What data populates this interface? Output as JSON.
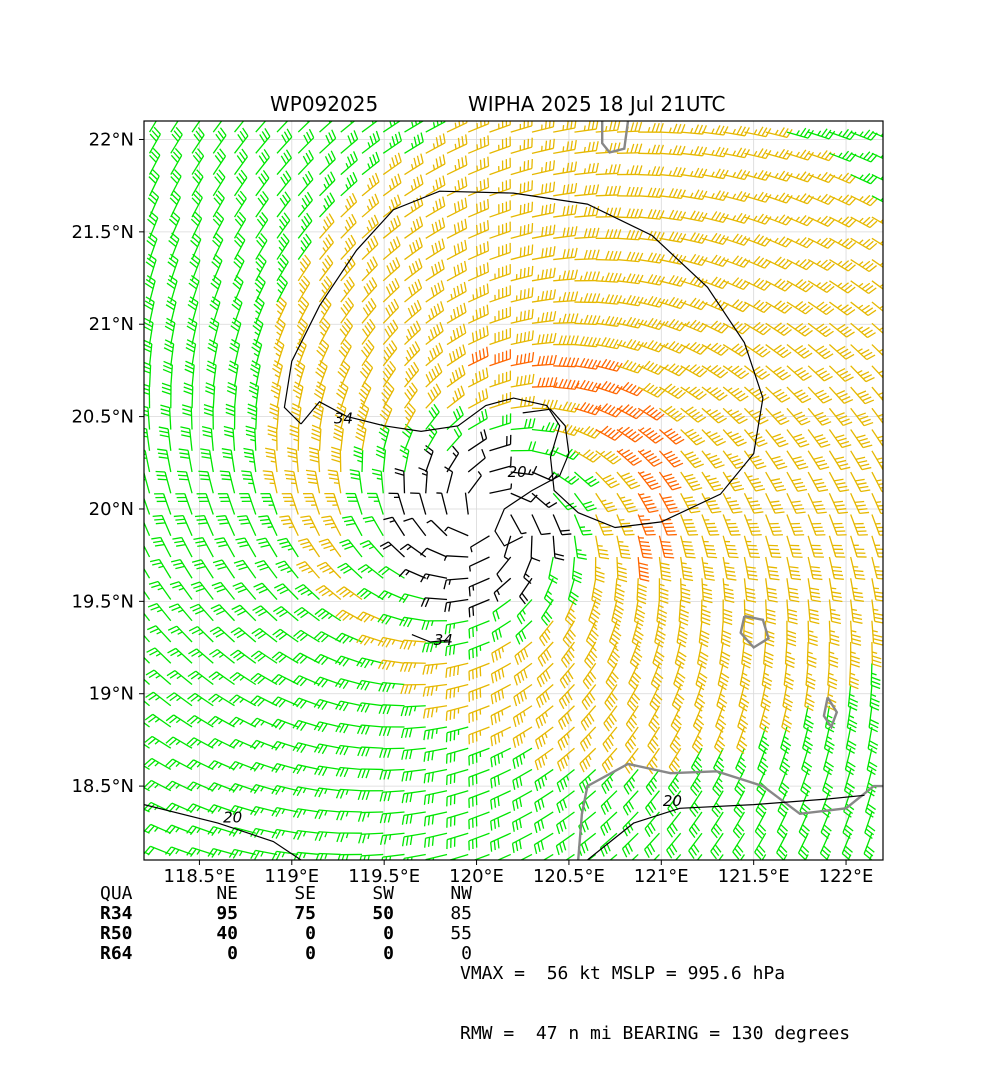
{
  "chart_data": {
    "type": "wind_barb_map",
    "title_left": "WP092025",
    "title_right": "WIPHA 2025 18 Jul 21UTC",
    "xlim": [
      118.2,
      122.2
    ],
    "ylim": [
      18.1,
      22.1
    ],
    "xticks": [
      118.5,
      119.0,
      119.5,
      120.0,
      120.5,
      121.0,
      121.5,
      122.0
    ],
    "xtick_labels": [
      "118.5°E",
      "119°E",
      "119.5°E",
      "120°E",
      "120.5°E",
      "121°E",
      "121.5°E",
      "122°E"
    ],
    "yticks": [
      18.5,
      19.0,
      19.5,
      20.0,
      20.5,
      21.0,
      21.5,
      22.0
    ],
    "ytick_labels": [
      "18.5°N",
      "19°N",
      "19.5°N",
      "20°N",
      "20.5°N",
      "21°N",
      "21.5°N",
      "22°N"
    ],
    "grid": true,
    "storm_center": {
      "lon": 120.05,
      "lat": 19.95
    },
    "wind_colors": {
      "below_20": "#000000",
      "20_to_34": "#00e600",
      "34_to_50": "#e6b800",
      "50_to_64": "#ff6600"
    },
    "contours": [
      {
        "label": "34",
        "level": 34
      },
      {
        "label": "20",
        "level": 20
      }
    ],
    "contour_label_positions": [
      {
        "text": "34",
        "lon": 119.28,
        "lat": 20.49
      },
      {
        "text": "34",
        "lon": 119.82,
        "lat": 19.29
      },
      {
        "text": "20",
        "lon": 120.22,
        "lat": 20.2
      },
      {
        "text": "20",
        "lon": 118.68,
        "lat": 18.33
      },
      {
        "text": "20",
        "lon": 121.06,
        "lat": 18.42
      }
    ],
    "wind_radii": {
      "headers": [
        "QUA",
        "NE",
        "SE",
        "SW",
        "NW"
      ],
      "rows": [
        {
          "label": "R34",
          "values": [
            "95",
            "75",
            "50",
            "85"
          ]
        },
        {
          "label": "R50",
          "values": [
            "40",
            "0",
            "0",
            "55"
          ]
        },
        {
          "label": "R64",
          "values": [
            "0",
            "0",
            "0",
            "0"
          ]
        }
      ]
    },
    "summary_lines": [
      "VMAX =  56 kt MSLP = 995.6 hPa",
      "RMW =  47 n mi BEARING = 130 degrees"
    ],
    "vmax_kt": 56,
    "mslp_hpa": 995.6,
    "rmw_nmi": 47,
    "bearing_deg": 130
  }
}
